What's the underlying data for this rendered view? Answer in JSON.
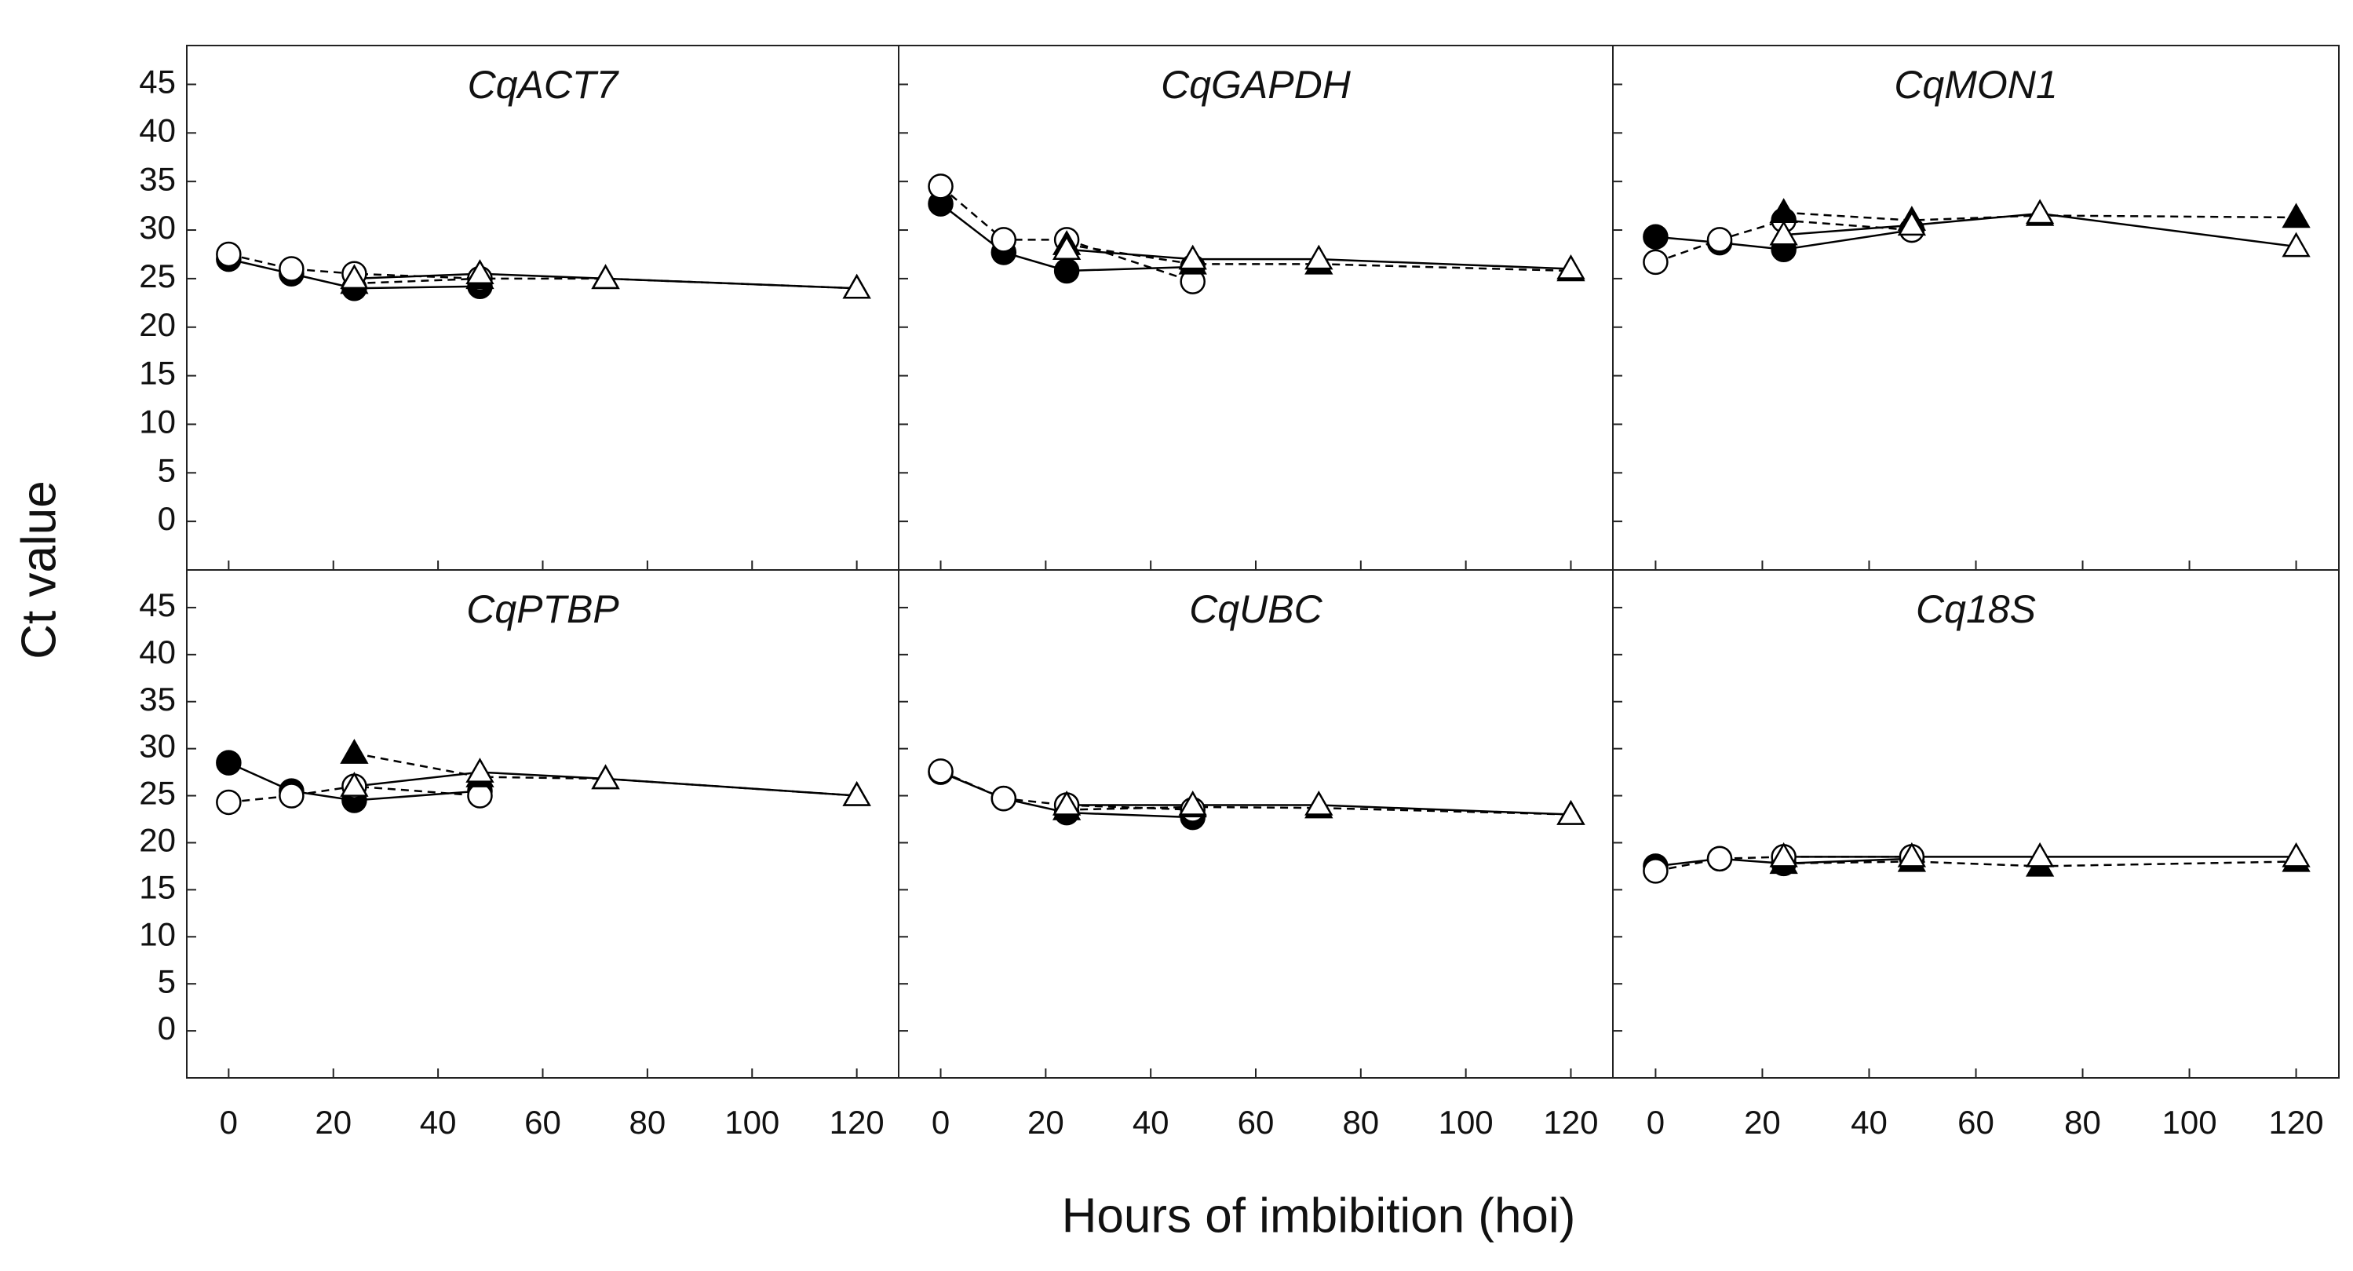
{
  "xlabel": "Hours of imbibition (hoi)",
  "ylabel": "Ct value",
  "chart_data": [
    {
      "type": "line",
      "title": "CqACT7",
      "xlim": [
        -8,
        128
      ],
      "ylim": [
        -5,
        49
      ],
      "xticks": [
        0,
        20,
        40,
        60,
        80,
        100,
        120
      ],
      "yticks": [
        0,
        5,
        10,
        15,
        20,
        25,
        30,
        35,
        40,
        45
      ],
      "series": [
        {
          "marker": "circle",
          "filled": true,
          "dashed": false,
          "color": "#000000",
          "x": [
            0,
            12,
            24,
            48
          ],
          "values": [
            27,
            25.5,
            24,
            24.2
          ]
        },
        {
          "marker": "circle",
          "filled": false,
          "dashed": true,
          "color": "#000000",
          "x": [
            0,
            12,
            24,
            48
          ],
          "values": [
            27.5,
            26,
            25.5,
            25
          ]
        },
        {
          "marker": "triangle",
          "filled": true,
          "dashed": true,
          "color": "#000000",
          "x": [
            24,
            48,
            72,
            120
          ],
          "values": [
            24.5,
            25,
            25,
            24
          ]
        },
        {
          "marker": "triangle",
          "filled": false,
          "dashed": false,
          "color": "#000000",
          "x": [
            24,
            48,
            72,
            120
          ],
          "values": [
            25,
            25.5,
            25,
            24
          ]
        }
      ]
    },
    {
      "type": "line",
      "title": "CqGAPDH",
      "xlim": [
        -8,
        128
      ],
      "ylim": [
        -5,
        49
      ],
      "xticks": [
        0,
        20,
        40,
        60,
        80,
        100,
        120
      ],
      "yticks": [
        0,
        5,
        10,
        15,
        20,
        25,
        30,
        35,
        40,
        45
      ],
      "series": [
        {
          "marker": "circle",
          "filled": true,
          "dashed": false,
          "color": "#000000",
          "x": [
            0,
            12,
            24,
            48
          ],
          "values": [
            32.7,
            27.7,
            25.8,
            26.2
          ]
        },
        {
          "marker": "circle",
          "filled": false,
          "dashed": true,
          "color": "#000000",
          "x": [
            0,
            12,
            24,
            48
          ],
          "values": [
            34.5,
            29,
            29,
            24.7
          ]
        },
        {
          "marker": "triangle",
          "filled": true,
          "dashed": true,
          "color": "#000000",
          "x": [
            24,
            48,
            72,
            120
          ],
          "values": [
            28.5,
            26.5,
            26.5,
            25.8
          ]
        },
        {
          "marker": "triangle",
          "filled": false,
          "dashed": false,
          "color": "#000000",
          "x": [
            24,
            48,
            72,
            120
          ],
          "values": [
            28,
            27,
            27,
            26
          ]
        }
      ]
    },
    {
      "type": "line",
      "title": "CqMON1",
      "xlim": [
        -8,
        128
      ],
      "ylim": [
        -5,
        49
      ],
      "xticks": [
        0,
        20,
        40,
        60,
        80,
        100,
        120
      ],
      "yticks": [
        0,
        5,
        10,
        15,
        20,
        25,
        30,
        35,
        40,
        45
      ],
      "series": [
        {
          "marker": "circle",
          "filled": true,
          "dashed": false,
          "color": "#000000",
          "x": [
            0,
            12,
            24,
            48
          ],
          "values": [
            29.3,
            28.7,
            28,
            30
          ]
        },
        {
          "marker": "circle",
          "filled": false,
          "dashed": true,
          "color": "#000000",
          "x": [
            0,
            12,
            24,
            48
          ],
          "values": [
            26.7,
            29,
            31,
            30
          ]
        },
        {
          "marker": "triangle",
          "filled": true,
          "dashed": true,
          "color": "#000000",
          "x": [
            24,
            48,
            72,
            120
          ],
          "values": [
            31.8,
            31,
            31.5,
            31.3
          ]
        },
        {
          "marker": "triangle",
          "filled": false,
          "dashed": false,
          "color": "#000000",
          "x": [
            24,
            48,
            72,
            120
          ],
          "values": [
            29.5,
            30.5,
            31.7,
            28.3
          ]
        }
      ]
    },
    {
      "type": "line",
      "title": "CqPTBP",
      "xlim": [
        -8,
        128
      ],
      "ylim": [
        -5,
        49
      ],
      "xticks": [
        0,
        20,
        40,
        60,
        80,
        100,
        120
      ],
      "yticks": [
        0,
        5,
        10,
        15,
        20,
        25,
        30,
        35,
        40,
        45
      ],
      "series": [
        {
          "marker": "circle",
          "filled": true,
          "dashed": false,
          "color": "#000000",
          "x": [
            0,
            12,
            24,
            48
          ],
          "values": [
            28.5,
            25.5,
            24.5,
            25.5
          ]
        },
        {
          "marker": "circle",
          "filled": false,
          "dashed": true,
          "color": "#000000",
          "x": [
            0,
            12,
            24,
            48
          ],
          "values": [
            24.3,
            25,
            26,
            25
          ]
        },
        {
          "marker": "triangle",
          "filled": true,
          "dashed": true,
          "color": "#000000",
          "x": [
            24,
            48,
            72,
            120
          ],
          "values": [
            29.5,
            27,
            26.8,
            25
          ]
        },
        {
          "marker": "triangle",
          "filled": false,
          "dashed": false,
          "color": "#000000",
          "x": [
            24,
            48,
            72,
            120
          ],
          "values": [
            26,
            27.5,
            26.8,
            25
          ]
        }
      ]
    },
    {
      "type": "line",
      "title": "CqUBC",
      "xlim": [
        -8,
        128
      ],
      "ylim": [
        -5,
        49
      ],
      "xticks": [
        0,
        20,
        40,
        60,
        80,
        100,
        120
      ],
      "yticks": [
        0,
        5,
        10,
        15,
        20,
        25,
        30,
        35,
        40,
        45
      ],
      "series": [
        {
          "marker": "circle",
          "filled": true,
          "dashed": false,
          "color": "#000000",
          "x": [
            0,
            12,
            24,
            48
          ],
          "values": [
            27.5,
            24.7,
            23.2,
            22.7
          ]
        },
        {
          "marker": "circle",
          "filled": false,
          "dashed": true,
          "color": "#000000",
          "x": [
            0,
            12,
            24,
            48
          ],
          "values": [
            27.6,
            24.7,
            24,
            23.5
          ]
        },
        {
          "marker": "triangle",
          "filled": true,
          "dashed": true,
          "color": "#000000",
          "x": [
            24,
            48,
            72,
            120
          ],
          "values": [
            23.5,
            23.8,
            23.7,
            23
          ]
        },
        {
          "marker": "triangle",
          "filled": false,
          "dashed": false,
          "color": "#000000",
          "x": [
            24,
            48,
            72,
            120
          ],
          "values": [
            24,
            24,
            24,
            23
          ]
        }
      ]
    },
    {
      "type": "line",
      "title": "Cq18S",
      "xlim": [
        -8,
        128
      ],
      "ylim": [
        -5,
        49
      ],
      "xticks": [
        0,
        20,
        40,
        60,
        80,
        100,
        120
      ],
      "yticks": [
        0,
        5,
        10,
        15,
        20,
        25,
        30,
        35,
        40,
        45
      ],
      "series": [
        {
          "marker": "circle",
          "filled": true,
          "dashed": false,
          "color": "#000000",
          "x": [
            0,
            12,
            24,
            48
          ],
          "values": [
            17.5,
            18.3,
            17.8,
            18.3
          ]
        },
        {
          "marker": "circle",
          "filled": false,
          "dashed": true,
          "color": "#000000",
          "x": [
            0,
            12,
            24,
            48
          ],
          "values": [
            17,
            18.3,
            18.5,
            18.5
          ]
        },
        {
          "marker": "triangle",
          "filled": true,
          "dashed": true,
          "color": "#000000",
          "x": [
            24,
            48,
            72,
            120
          ],
          "values": [
            17.8,
            18,
            17.5,
            18
          ]
        },
        {
          "marker": "triangle",
          "filled": false,
          "dashed": false,
          "color": "#000000",
          "x": [
            24,
            48,
            72,
            120
          ],
          "values": [
            18.5,
            18.5,
            18.5,
            18.5
          ]
        }
      ]
    }
  ]
}
